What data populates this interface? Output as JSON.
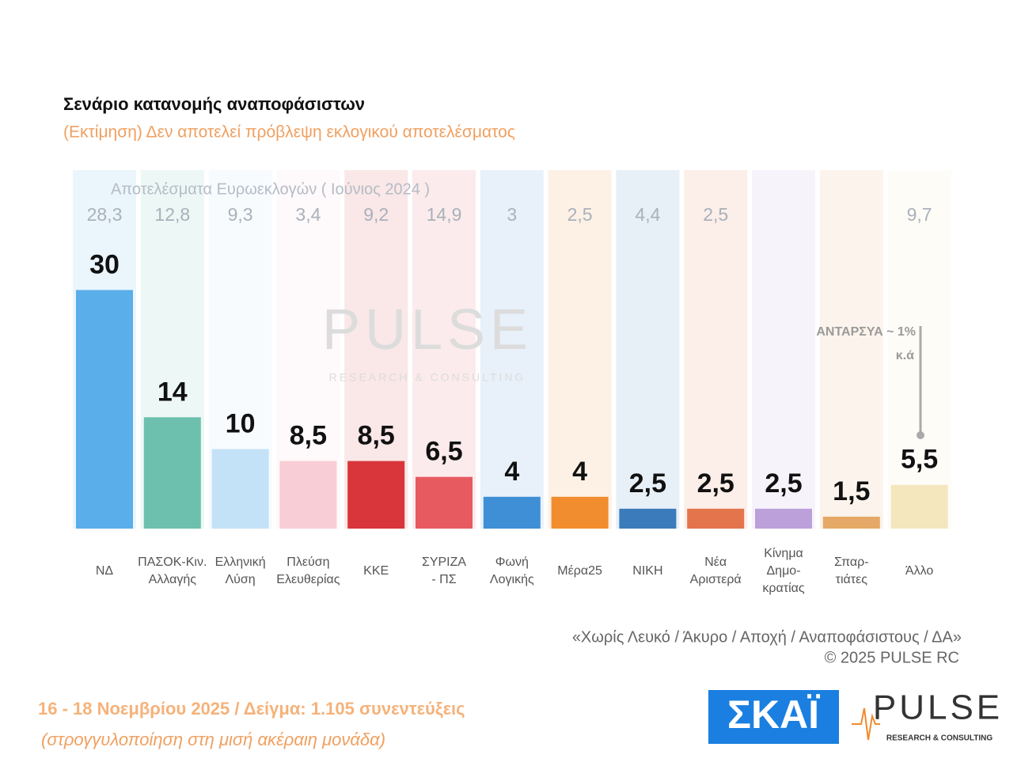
{
  "chart_data": {
    "type": "bar",
    "title": "Σενάριο κατανομής αναποφάσιστων",
    "subtitle": "(Εκτίμηση)   Δεν αποτελεί πρόβλεψη εκλογικού αποτελέσματος",
    "categories": [
      "ΝΔ",
      "ΠΑΣΟΚ-Κιν.\nΑλλαγής",
      "Ελληνική\nΛύση",
      "Πλεύση\nΕλευθερίας",
      "ΚΚΕ",
      "ΣΥΡΙΖΑ\n- ΠΣ",
      "Φωνή\nΛογικής",
      "Μέρα25",
      "ΝΙΚΗ",
      "Νέα\nΑριστερά",
      "Κίνημα\nΔημο-\nκρατίας",
      "Σπαρ-\nτιάτες",
      "Άλλο"
    ],
    "values": [
      30,
      14,
      10,
      8.5,
      8.5,
      6.5,
      4,
      4,
      2.5,
      2.5,
      2.5,
      1.5,
      5.5
    ],
    "value_labels": [
      "30",
      "14",
      "10",
      "8,5",
      "8,5",
      "6,5",
      "4",
      "4",
      "2,5",
      "2,5",
      "2,5",
      "1,5",
      "5,5"
    ],
    "colors": [
      "#5aaeea",
      "#6cc0ad",
      "#c4e2f7",
      "#f9cdd5",
      "#d8363a",
      "#e65a60",
      "#3f8fd6",
      "#f18d2e",
      "#3b7bbb",
      "#e3744c",
      "#bca0da",
      "#e6a866",
      "#f4e6bd"
    ],
    "previous": {
      "label": "Αποτελέσματα Ευρωεκλογών  ( Ιούνιος 2024 )",
      "values": [
        28.3,
        12.8,
        9.3,
        3.4,
        9.2,
        14.9,
        3,
        2.5,
        4.4,
        2.5,
        null,
        null,
        9.7
      ],
      "value_labels": [
        "28,3",
        "12,8",
        "9,3",
        "3,4",
        "9,2",
        "14,9",
        "3",
        "2,5",
        "4,4",
        "2,5",
        null,
        null,
        "9,7"
      ]
    },
    "annotations": [
      "ΑΝΤΑΡΣΥΑ ~ 1%",
      "κ.ά"
    ],
    "watermark": [
      "PULSE",
      "RESEARCH & CONSULTING"
    ],
    "footnotes": [
      "«Χωρίς Λευκό / Άκυρο / Αποχή / Αναποφάσιστους / ΔΑ»",
      "©  2025  PULSE RC"
    ],
    "survey": [
      "16 - 18 Νοεμβρίου 2025  /  Δείγμα:  1.105 συνεντεύξεις",
      "(στρογγυλοποίηση στη μισή ακέραιη μονάδα)"
    ],
    "logos": [
      "ΣΚΑΪ",
      "PULSE",
      "RESEARCH & CONSULTING"
    ]
  }
}
